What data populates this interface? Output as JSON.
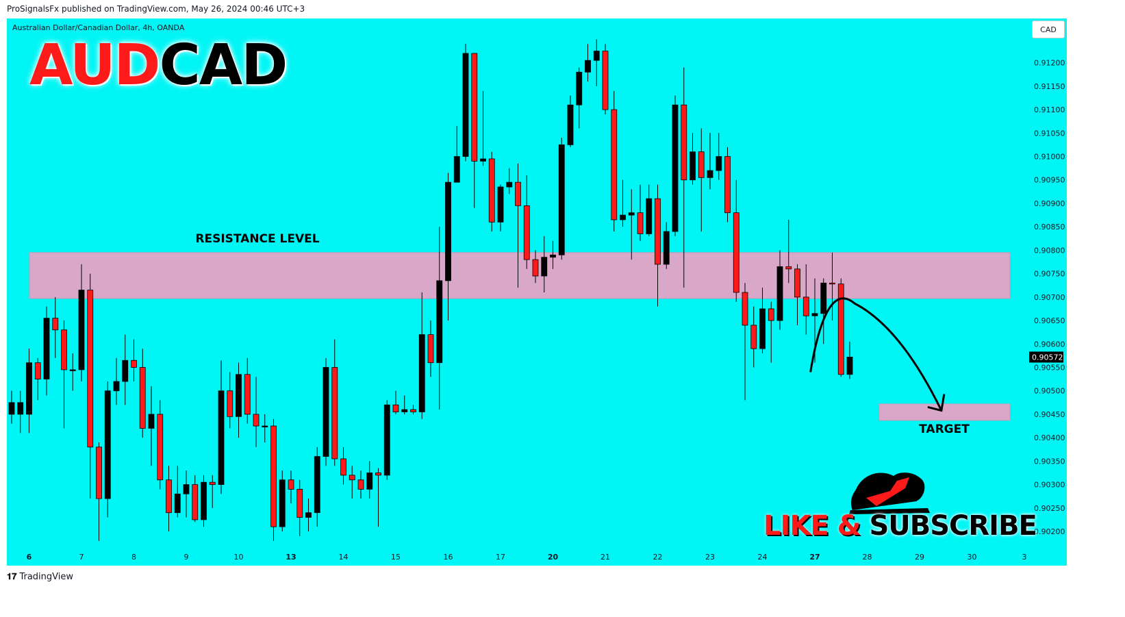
{
  "header": {
    "published_by": "ProSignalsFx published on TradingView.com, May 26, 2024 00:46 UTC+3"
  },
  "chart_header": {
    "symbol_description": "Australian Dollar/Canadian Dollar, 4h, OANDA",
    "currency": "CAD"
  },
  "title": {
    "part1": "AUD",
    "part2": "CAD"
  },
  "annotations": {
    "resistance_label": "RESISTANCE LEVEL",
    "target_label": "TARGET",
    "like": "LIKE &",
    "subscribe": "SUBSCRIBE"
  },
  "colors": {
    "background": "#00f5f5",
    "up": "#000000",
    "down": "#ff1a1a",
    "zone": "#d9a7c7",
    "title_red": "#ff1a1a"
  },
  "footer": {
    "brand": "TradingView"
  },
  "chart_data": {
    "type": "candlestick",
    "timeframe": "4h",
    "y_ticks": [
      "0.91200",
      "0.91150",
      "0.91100",
      "0.91050",
      "0.91000",
      "0.90950",
      "0.90900",
      "0.90850",
      "0.90800",
      "0.90750",
      "0.90700",
      "0.90650",
      "0.90600",
      "0.90550",
      "0.90500",
      "0.90450",
      "0.90400",
      "0.90350",
      "0.90300",
      "0.90250",
      "0.90200"
    ],
    "ylim": [
      0.90165,
      0.91255
    ],
    "x_ticks": [
      {
        "label": "6",
        "bold": true,
        "index": 2
      },
      {
        "label": "7",
        "bold": false,
        "index": 8
      },
      {
        "label": "8",
        "bold": false,
        "index": 14
      },
      {
        "label": "9",
        "bold": false,
        "index": 20
      },
      {
        "label": "10",
        "bold": false,
        "index": 26
      },
      {
        "label": "13",
        "bold": true,
        "index": 32
      },
      {
        "label": "14",
        "bold": false,
        "index": 38
      },
      {
        "label": "15",
        "bold": false,
        "index": 44
      },
      {
        "label": "16",
        "bold": false,
        "index": 50
      },
      {
        "label": "17",
        "bold": false,
        "index": 56
      },
      {
        "label": "20",
        "bold": true,
        "index": 62
      },
      {
        "label": "21",
        "bold": false,
        "index": 68
      },
      {
        "label": "22",
        "bold": false,
        "index": 74
      },
      {
        "label": "23",
        "bold": false,
        "index": 80
      },
      {
        "label": "24",
        "bold": false,
        "index": 86
      },
      {
        "label": "27",
        "bold": true,
        "index": 92
      },
      {
        "label": "28",
        "bold": false,
        "index": 98
      },
      {
        "label": "29",
        "bold": false,
        "index": 104
      },
      {
        "label": "30",
        "bold": false,
        "index": 110
      },
      {
        "label": "3",
        "bold": false,
        "index": 116
      }
    ],
    "last_price": "0.90572",
    "resistance_zone": {
      "low": 0.90697,
      "high": 0.90795
    },
    "target_zone": {
      "low": 0.90437,
      "high": 0.90472
    },
    "projection": {
      "from_index": 91.5,
      "from_price": 0.9054,
      "peak_index": 95,
      "peak_price": 0.90695,
      "to_index": 106.5,
      "to_price": 0.90458
    },
    "candles": [
      [
        0.9045,
        0.90475,
        0.9043,
        0.905
      ],
      [
        0.9045,
        0.90475,
        0.9041,
        0.905
      ],
      [
        0.9045,
        0.9056,
        0.9041,
        0.9059
      ],
      [
        0.9056,
        0.90525,
        0.9048,
        0.9057
      ],
      [
        0.90525,
        0.90655,
        0.9049,
        0.9068
      ],
      [
        0.90655,
        0.9063,
        0.9057,
        0.907
      ],
      [
        0.9063,
        0.90545,
        0.9042,
        0.9065
      ],
      [
        0.90545,
        0.90545,
        0.905,
        0.9058
      ],
      [
        0.90545,
        0.90715,
        0.9052,
        0.9077
      ],
      [
        0.90715,
        0.9038,
        0.9027,
        0.9075
      ],
      [
        0.9038,
        0.9027,
        0.9018,
        0.9039
      ],
      [
        0.9027,
        0.905,
        0.9023,
        0.9052
      ],
      [
        0.905,
        0.9052,
        0.9047,
        0.9057
      ],
      [
        0.9052,
        0.90565,
        0.9047,
        0.9062
      ],
      [
        0.90565,
        0.9055,
        0.9052,
        0.9061
      ],
      [
        0.9055,
        0.9042,
        0.904,
        0.9059
      ],
      [
        0.9042,
        0.9045,
        0.9034,
        0.9051
      ],
      [
        0.9045,
        0.9031,
        0.9029,
        0.9048
      ],
      [
        0.9031,
        0.9024,
        0.902,
        0.9034
      ],
      [
        0.9024,
        0.9028,
        0.9023,
        0.9034
      ],
      [
        0.9028,
        0.903,
        0.9023,
        0.9033
      ],
      [
        0.903,
        0.90225,
        0.9022,
        0.9032
      ],
      [
        0.90225,
        0.90305,
        0.9021,
        0.9032
      ],
      [
        0.90305,
        0.903,
        0.9025,
        0.9032
      ],
      [
        0.903,
        0.905,
        0.9028,
        0.90565
      ],
      [
        0.905,
        0.90445,
        0.9042,
        0.9054
      ],
      [
        0.90445,
        0.90535,
        0.904,
        0.9056
      ],
      [
        0.90535,
        0.9045,
        0.9043,
        0.9057
      ],
      [
        0.9045,
        0.90425,
        0.9038,
        0.9053
      ],
      [
        0.90425,
        0.90425,
        0.9039,
        0.9045
      ],
      [
        0.90425,
        0.9021,
        0.9018,
        0.9044
      ],
      [
        0.9021,
        0.9031,
        0.902,
        0.9033
      ],
      [
        0.9031,
        0.9029,
        0.9026,
        0.9033
      ],
      [
        0.9029,
        0.9023,
        0.9019,
        0.9031
      ],
      [
        0.9023,
        0.9024,
        0.902,
        0.9027
      ],
      [
        0.9024,
        0.9036,
        0.9021,
        0.9038
      ],
      [
        0.9036,
        0.9055,
        0.9034,
        0.9057
      ],
      [
        0.9055,
        0.90355,
        0.9034,
        0.9061
      ],
      [
        0.90355,
        0.9032,
        0.903,
        0.9038
      ],
      [
        0.9032,
        0.9031,
        0.9027,
        0.9034
      ],
      [
        0.9031,
        0.9029,
        0.9027,
        0.9033
      ],
      [
        0.9029,
        0.90325,
        0.9027,
        0.9035
      ],
      [
        0.90325,
        0.9032,
        0.9021,
        0.90335
      ],
      [
        0.9032,
        0.9047,
        0.9031,
        0.9048
      ],
      [
        0.9047,
        0.90455,
        0.9045,
        0.905
      ],
      [
        0.90455,
        0.9046,
        0.9045,
        0.9049
      ],
      [
        0.9046,
        0.90455,
        0.9045,
        0.9047
      ],
      [
        0.90455,
        0.9062,
        0.9044,
        0.9071
      ],
      [
        0.9062,
        0.9056,
        0.9053,
        0.9065
      ],
      [
        0.9056,
        0.90735,
        0.9046,
        0.9085
      ],
      [
        0.90735,
        0.90945,
        0.9065,
        0.90965
      ],
      [
        0.90945,
        0.91,
        0.9095,
        0.91065
      ],
      [
        0.91,
        0.9122,
        0.9099,
        0.9124
      ],
      [
        0.9122,
        0.9099,
        0.9089,
        0.9122
      ],
      [
        0.9099,
        0.90995,
        0.9098,
        0.9114
      ],
      [
        0.90995,
        0.9086,
        0.9084,
        0.9101
      ],
      [
        0.9086,
        0.90935,
        0.9084,
        0.9094
      ],
      [
        0.90935,
        0.90945,
        0.9092,
        0.90975
      ],
      [
        0.90945,
        0.90895,
        0.9072,
        0.90985
      ],
      [
        0.90895,
        0.9078,
        0.9076,
        0.9096
      ],
      [
        0.9078,
        0.90745,
        0.9073,
        0.908
      ],
      [
        0.90745,
        0.90785,
        0.9071,
        0.9083
      ],
      [
        0.90785,
        0.9079,
        0.9076,
        0.9082
      ],
      [
        0.9079,
        0.91025,
        0.9078,
        0.9104
      ],
      [
        0.91025,
        0.9111,
        0.9102,
        0.9113
      ],
      [
        0.9111,
        0.9118,
        0.9106,
        0.9119
      ],
      [
        0.9118,
        0.91205,
        0.9116,
        0.9124
      ],
      [
        0.91205,
        0.91225,
        0.9115,
        0.9125
      ],
      [
        0.91225,
        0.911,
        0.9109,
        0.9124
      ],
      [
        0.911,
        0.90865,
        0.9084,
        0.9114
      ],
      [
        0.90865,
        0.90875,
        0.9085,
        0.9095
      ],
      [
        0.90875,
        0.9088,
        0.9078,
        0.9093
      ],
      [
        0.9088,
        0.90835,
        0.9082,
        0.9094
      ],
      [
        0.90835,
        0.9091,
        0.9083,
        0.9094
      ],
      [
        0.9091,
        0.9077,
        0.9068,
        0.9094
      ],
      [
        0.9077,
        0.9084,
        0.9076,
        0.9086
      ],
      [
        0.9084,
        0.9111,
        0.9083,
        0.9113
      ],
      [
        0.9111,
        0.9095,
        0.9072,
        0.9119
      ],
      [
        0.9095,
        0.9101,
        0.9094,
        0.9105
      ],
      [
        0.9101,
        0.90955,
        0.9084,
        0.9106
      ],
      [
        0.90955,
        0.9097,
        0.9093,
        0.9105
      ],
      [
        0.9097,
        0.91,
        0.9095,
        0.9105
      ],
      [
        0.91,
        0.9088,
        0.9086,
        0.9102
      ],
      [
        0.9088,
        0.9071,
        0.9069,
        0.9095
      ],
      [
        0.9071,
        0.9064,
        0.9048,
        0.9073
      ],
      [
        0.9064,
        0.9059,
        0.9055,
        0.9068
      ],
      [
        0.9059,
        0.90675,
        0.9058,
        0.9072
      ],
      [
        0.90675,
        0.9065,
        0.9056,
        0.9069
      ],
      [
        0.9065,
        0.90765,
        0.9063,
        0.908
      ],
      [
        0.90765,
        0.9076,
        0.9073,
        0.90865
      ],
      [
        0.9076,
        0.907,
        0.9064,
        0.9077
      ],
      [
        0.907,
        0.9066,
        0.9062,
        0.9077
      ],
      [
        0.9066,
        0.90665,
        0.9056,
        0.9074
      ],
      [
        0.90665,
        0.9073,
        0.906,
        0.9074
      ],
      [
        0.9073,
        0.90728,
        0.9065,
        0.90795
      ],
      [
        0.90728,
        0.90535,
        0.9053,
        0.9074
      ],
      [
        0.90535,
        0.90572,
        0.90525,
        0.90605
      ]
    ]
  }
}
